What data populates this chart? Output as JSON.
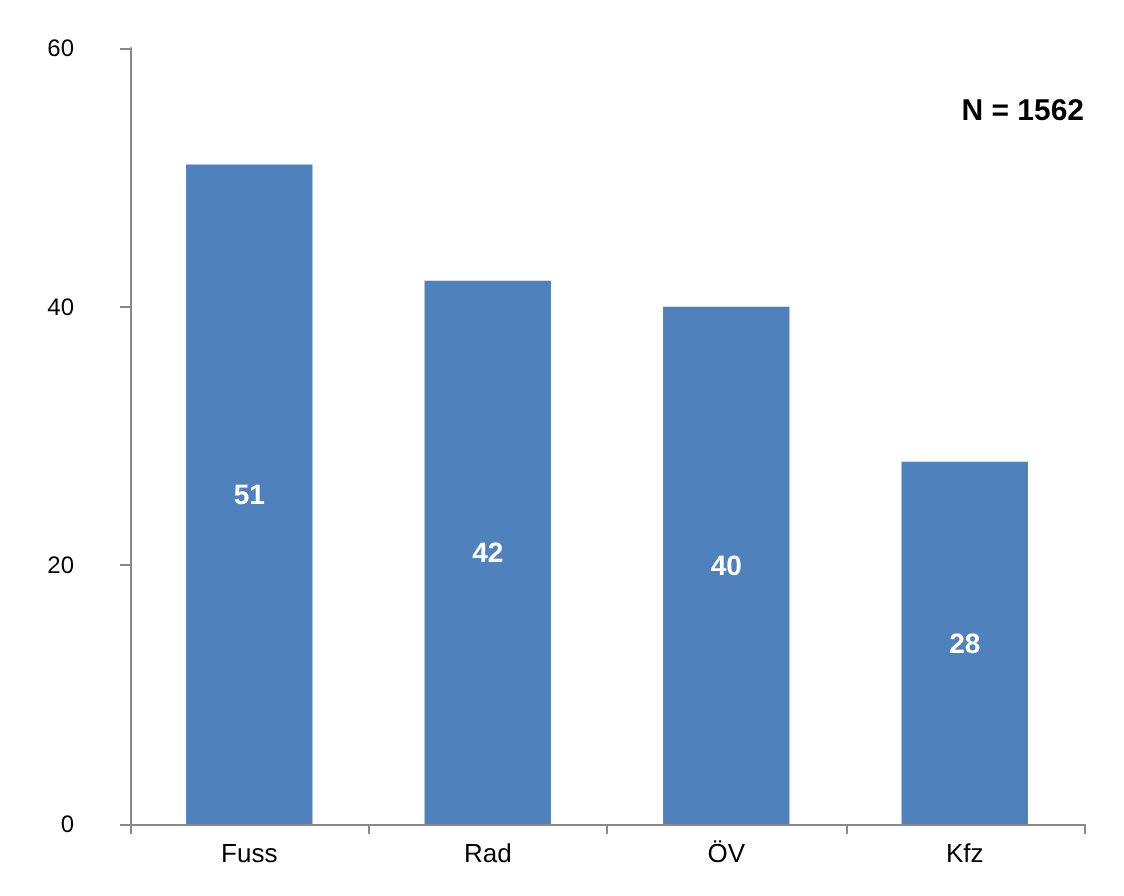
{
  "chart_data": {
    "type": "bar",
    "categories": [
      "Fuss",
      "Rad",
      "ÖV",
      "Kfz"
    ],
    "values": [
      51,
      42,
      40,
      28
    ],
    "color": "#4f81bd",
    "ylim": [
      0,
      60
    ],
    "yticks": [
      0,
      20,
      40,
      60
    ],
    "grid": false,
    "data_labels": true,
    "annotations": [
      "N = 1562"
    ]
  }
}
